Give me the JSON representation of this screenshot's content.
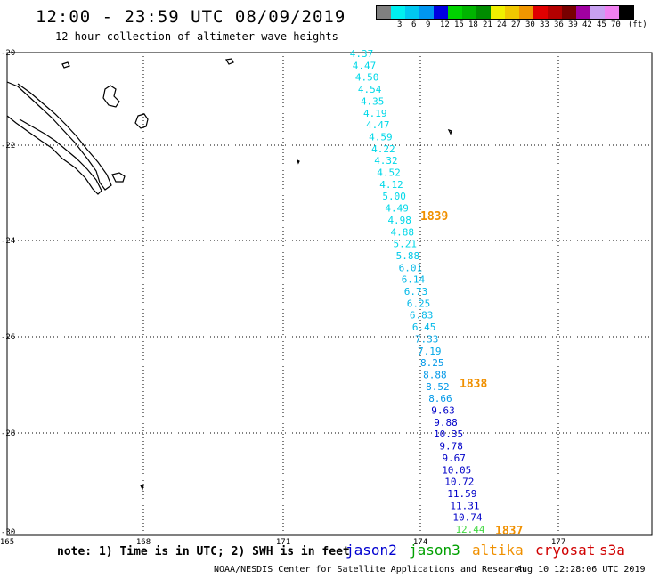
{
  "header": {
    "title": "12:00 - 23:59 UTC 08/09/2019",
    "subtitle": "12 hour collection of altimeter wave heights"
  },
  "color_scale": {
    "unit": "(ft)",
    "entries": [
      {
        "label": "",
        "color": "#808080"
      },
      {
        "label": "3",
        "color": "#00f0f0"
      },
      {
        "label": "6",
        "color": "#00c8f0"
      },
      {
        "label": "9",
        "color": "#0096f0"
      },
      {
        "label": "12",
        "color": "#0000e0"
      },
      {
        "label": "15",
        "color": "#00d200"
      },
      {
        "label": "18",
        "color": "#00b400"
      },
      {
        "label": "21",
        "color": "#008c00"
      },
      {
        "label": "24",
        "color": "#f0f000"
      },
      {
        "label": "27",
        "color": "#f0c800"
      },
      {
        "label": "30",
        "color": "#f09600"
      },
      {
        "label": "33",
        "color": "#e00000"
      },
      {
        "label": "36",
        "color": "#b40000"
      },
      {
        "label": "39",
        "color": "#780000"
      },
      {
        "label": "42",
        "color": "#a000a0"
      },
      {
        "label": "45",
        "color": "#c8a0f0"
      },
      {
        "label": "70",
        "color": "#f080f0"
      },
      {
        "label": "",
        "color": "#000000"
      }
    ]
  },
  "map": {
    "lon_labels": [
      "165",
      "168",
      "171",
      "174",
      "177"
    ],
    "lat_labels": [
      "-20",
      "-22",
      "-24",
      "-26",
      "-28",
      "-30"
    ],
    "wave_heights": [
      {
        "v": "4.37",
        "c": "#00d8e8"
      },
      {
        "v": "4.47",
        "c": "#00d8e8"
      },
      {
        "v": "4.50",
        "c": "#00d8e8"
      },
      {
        "v": "4.54",
        "c": "#00d8e8"
      },
      {
        "v": "4.35",
        "c": "#00d8e8"
      },
      {
        "v": "4.19",
        "c": "#00d8e8"
      },
      {
        "v": "4.47",
        "c": "#00d8e8"
      },
      {
        "v": "4.59",
        "c": "#00d8e8"
      },
      {
        "v": "4.22",
        "c": "#00d8e8"
      },
      {
        "v": "4.32",
        "c": "#00d8e8"
      },
      {
        "v": "4.52",
        "c": "#00d8e8"
      },
      {
        "v": "4.12",
        "c": "#00d8e8"
      },
      {
        "v": "5.00",
        "c": "#00d8e8"
      },
      {
        "v": "4.49",
        "c": "#00d8e8"
      },
      {
        "v": "4.98",
        "c": "#00d8e8"
      },
      {
        "v": "4.88",
        "c": "#00d8e8"
      },
      {
        "v": "5.21",
        "c": "#00d8e8"
      },
      {
        "v": "5.88",
        "c": "#00c8e8"
      },
      {
        "v": "6.01",
        "c": "#00b8e8"
      },
      {
        "v": "6.14",
        "c": "#00b8e8"
      },
      {
        "v": "6.73",
        "c": "#00b8e8"
      },
      {
        "v": "6.25",
        "c": "#00b8e8"
      },
      {
        "v": "6.83",
        "c": "#00b8e8"
      },
      {
        "v": "6.45",
        "c": "#00b8e8"
      },
      {
        "v": "7.33",
        "c": "#00a8e8"
      },
      {
        "v": "7.19",
        "c": "#00a8e8"
      },
      {
        "v": "8.25",
        "c": "#0098e8"
      },
      {
        "v": "8.88",
        "c": "#0098e8"
      },
      {
        "v": "8.52",
        "c": "#0098e8"
      },
      {
        "v": "8.66",
        "c": "#0098e8"
      },
      {
        "v": "9.63",
        "c": "#0000c8"
      },
      {
        "v": "9.88",
        "c": "#0000c8"
      },
      {
        "v": "10.35",
        "c": "#0000c8"
      },
      {
        "v": "9.78",
        "c": "#0000c8"
      },
      {
        "v": "9.67",
        "c": "#0000c8"
      },
      {
        "v": "10.05",
        "c": "#0000c8"
      },
      {
        "v": "10.72",
        "c": "#0000c8"
      },
      {
        "v": "11.59",
        "c": "#0000c8"
      },
      {
        "v": "11.31",
        "c": "#0000c8"
      },
      {
        "v": "10.74",
        "c": "#0000c8"
      },
      {
        "v": "12.44",
        "c": "#40d840"
      }
    ],
    "time_labels": [
      {
        "text": "1839",
        "color": "#f09000"
      },
      {
        "text": "1838",
        "color": "#f09000"
      },
      {
        "text": "1837",
        "color": "#f09000"
      }
    ]
  },
  "legend": {
    "note": "note: 1) Time is in UTC; 2) SWH is in feet",
    "satellites": [
      {
        "name": "jason2",
        "color": "#0000d0"
      },
      {
        "name": "jason3",
        "color": "#00a000"
      },
      {
        "name": "altika",
        "color": "#f09000"
      },
      {
        "name": "cryosat",
        "color": "#d00000"
      },
      {
        "name": "s3a",
        "color": "#d00000"
      }
    ]
  },
  "footer": {
    "credit": "NOAA/NESDIS Center for Satellite Applications and Research",
    "timestamp": "Aug 10 12:28:06 UTC 2019"
  }
}
